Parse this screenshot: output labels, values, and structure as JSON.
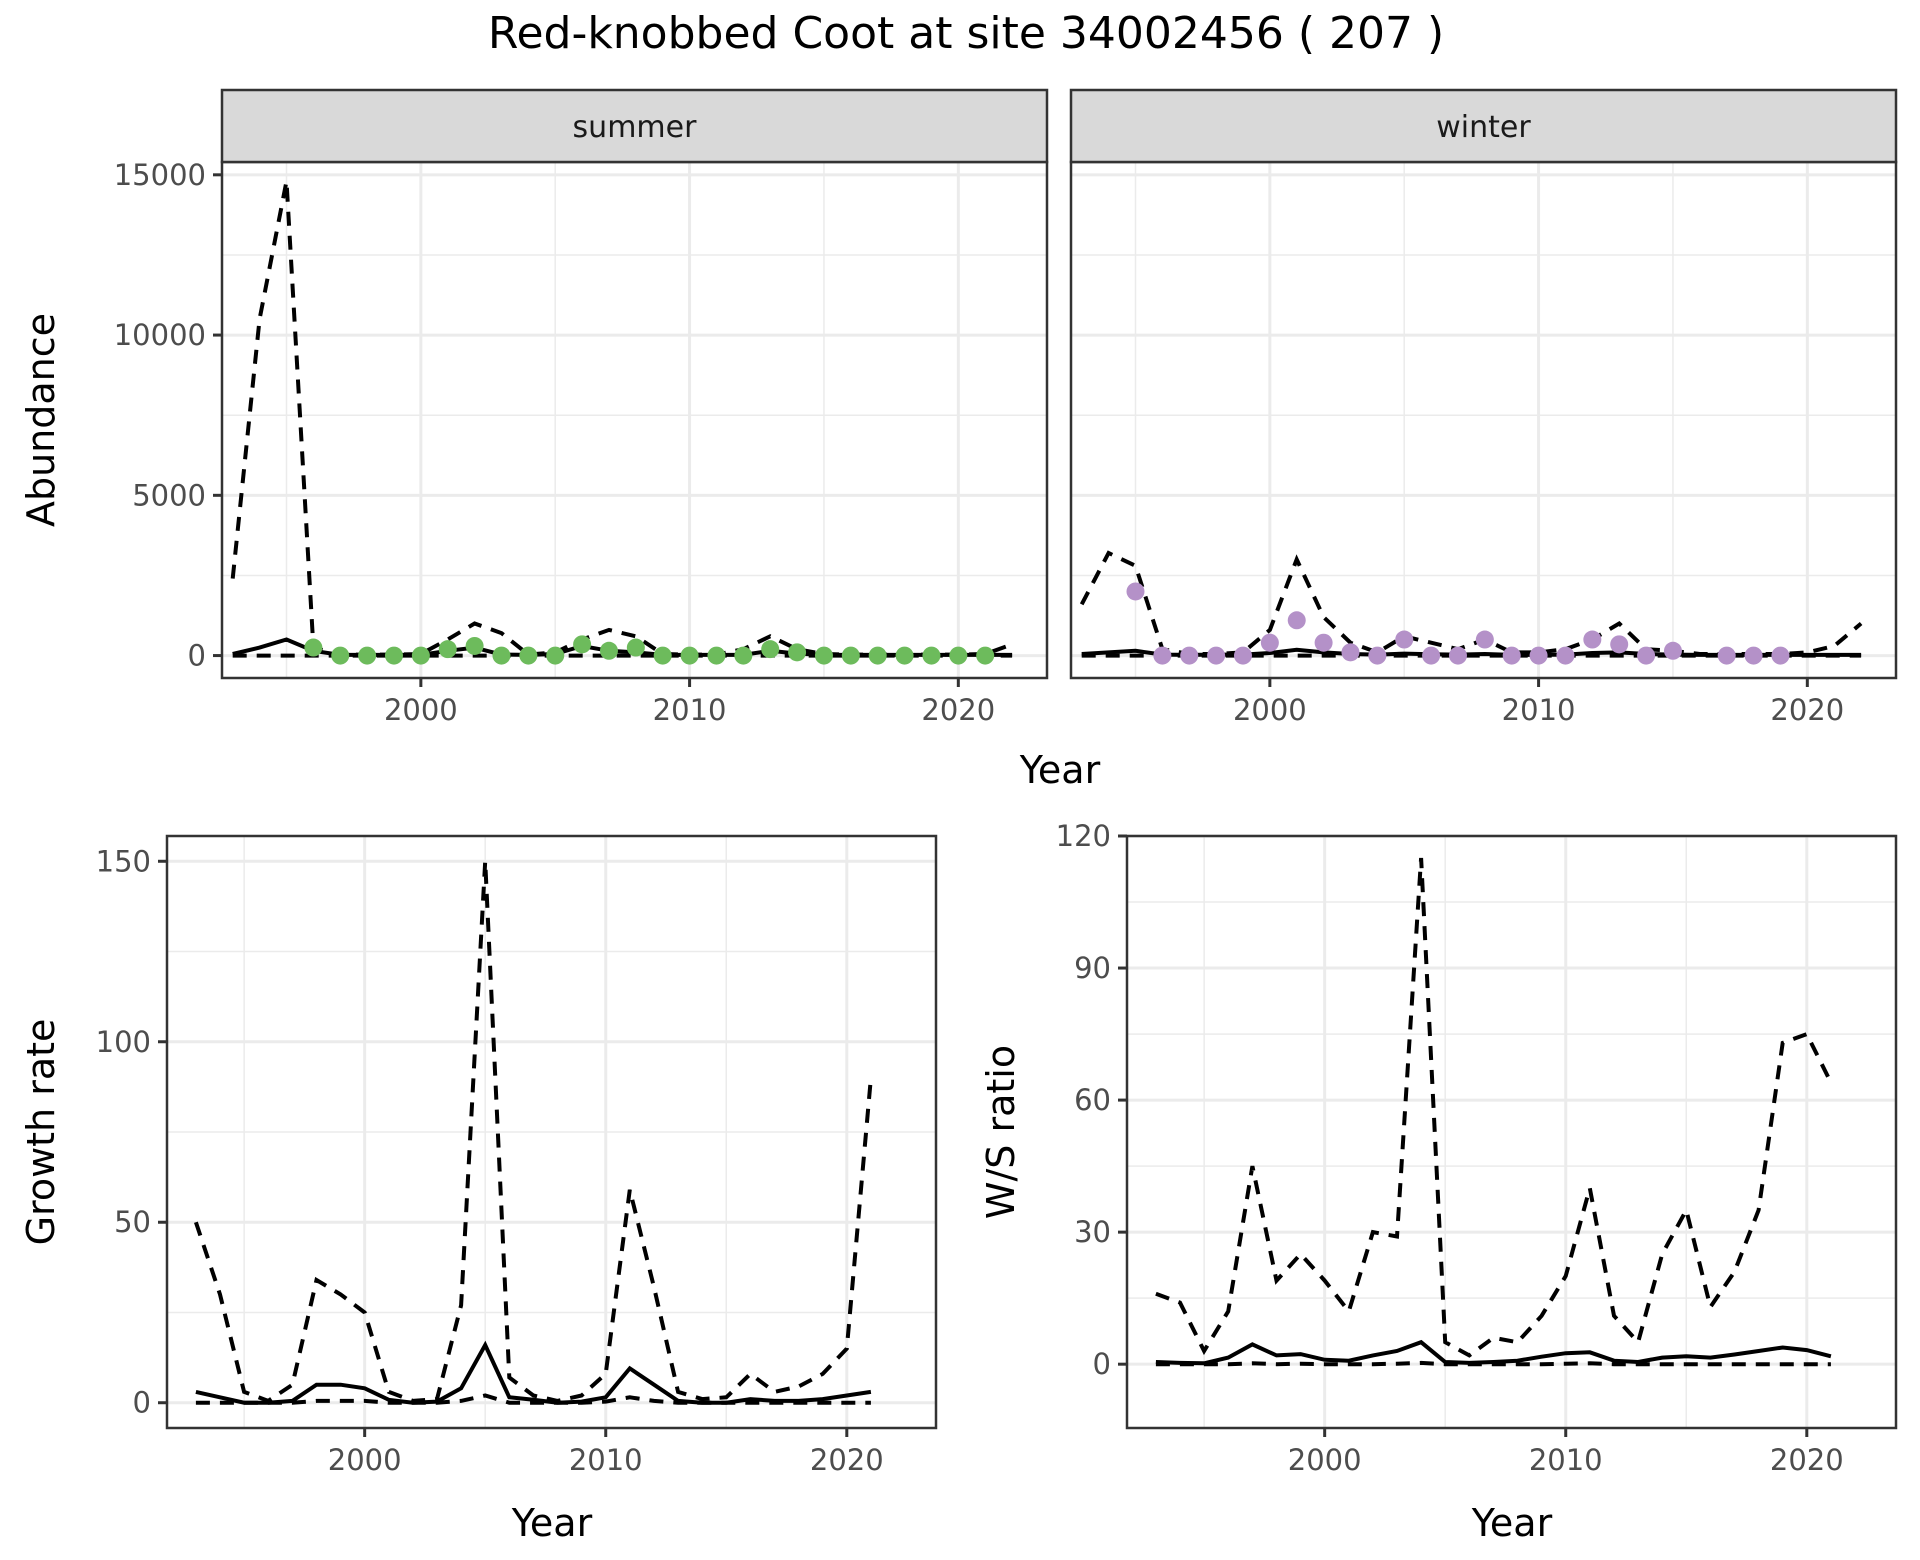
{
  "title": "Red-knobbed Coot at site 34002456 ( 207 )",
  "chart_data": [
    {
      "id": "abundance",
      "type": "line",
      "facets": [
        "summer",
        "winter"
      ],
      "xlabel": "Year",
      "ylabel": "Abundance",
      "xlim": [
        1992.6,
        2023.3
      ],
      "ylim": [
        -700,
        15400
      ],
      "xticks": [
        2000,
        2010,
        2020
      ],
      "xticklabels": [
        "2000",
        "2010",
        "2020"
      ],
      "yticks": [
        0,
        5000,
        10000,
        15000
      ],
      "yticklabels": [
        "0",
        "5000",
        "10000",
        "15000"
      ],
      "grid": true,
      "panels": [
        {
          "facet": "summer",
          "point_color": "#6dbb5c",
          "x": [
            1993,
            1994,
            1995,
            1996,
            1997,
            1998,
            1999,
            2000,
            2001,
            2002,
            2003,
            2004,
            2005,
            2006,
            2007,
            2008,
            2009,
            2010,
            2011,
            2012,
            2013,
            2014,
            2015,
            2016,
            2017,
            2018,
            2019,
            2020,
            2021,
            2022
          ],
          "mean": [
            50,
            250,
            500,
            150,
            20,
            20,
            20,
            20,
            150,
            250,
            30,
            20,
            50,
            300,
            150,
            100,
            20,
            20,
            20,
            20,
            150,
            60,
            20,
            20,
            20,
            20,
            20,
            20,
            20,
            20
          ],
          "upper": [
            2400,
            10500,
            14800,
            250,
            30,
            30,
            30,
            50,
            500,
            1000,
            700,
            30,
            100,
            500,
            800,
            600,
            50,
            30,
            30,
            200,
            600,
            200,
            50,
            30,
            30,
            30,
            30,
            30,
            50,
            350
          ],
          "lower": [
            0,
            0,
            0,
            0,
            0,
            0,
            0,
            0,
            0,
            0,
            0,
            0,
            0,
            0,
            0,
            0,
            0,
            0,
            0,
            0,
            0,
            0,
            0,
            0,
            0,
            0,
            0,
            0,
            0,
            0
          ],
          "points": [
            [
              1996,
              250
            ],
            [
              1997,
              0
            ],
            [
              1998,
              0
            ],
            [
              1999,
              0
            ],
            [
              2000,
              0
            ],
            [
              2001,
              200
            ],
            [
              2002,
              300
            ],
            [
              2003,
              0
            ],
            [
              2004,
              0
            ],
            [
              2005,
              0
            ],
            [
              2006,
              350
            ],
            [
              2007,
              150
            ],
            [
              2008,
              250
            ],
            [
              2009,
              0
            ],
            [
              2010,
              0
            ],
            [
              2011,
              0
            ],
            [
              2012,
              0
            ],
            [
              2013,
              200
            ],
            [
              2014,
              100
            ],
            [
              2015,
              0
            ],
            [
              2016,
              0
            ],
            [
              2017,
              0
            ],
            [
              2018,
              0
            ],
            [
              2019,
              0
            ],
            [
              2020,
              0
            ],
            [
              2021,
              0
            ]
          ]
        },
        {
          "facet": "winter",
          "point_color": "#b491c8",
          "x": [
            1993,
            1994,
            1995,
            1996,
            1997,
            1998,
            1999,
            2000,
            2001,
            2002,
            2003,
            2004,
            2005,
            2006,
            2007,
            2008,
            2009,
            2010,
            2011,
            2012,
            2013,
            2014,
            2015,
            2016,
            2017,
            2018,
            2019,
            2020,
            2021,
            2022
          ],
          "mean": [
            50,
            100,
            150,
            30,
            20,
            30,
            30,
            80,
            180,
            100,
            50,
            30,
            60,
            40,
            30,
            50,
            20,
            20,
            30,
            80,
            100,
            50,
            30,
            20,
            20,
            20,
            20,
            20,
            20,
            20
          ],
          "upper": [
            1600,
            3200,
            2800,
            200,
            50,
            50,
            100,
            800,
            3000,
            1200,
            400,
            100,
            600,
            400,
            200,
            500,
            100,
            100,
            200,
            500,
            1000,
            200,
            150,
            50,
            50,
            50,
            50,
            100,
            300,
            1000
          ],
          "lower": [
            0,
            0,
            0,
            0,
            0,
            0,
            0,
            0,
            0,
            0,
            0,
            0,
            0,
            0,
            0,
            0,
            0,
            0,
            0,
            0,
            0,
            0,
            0,
            0,
            0,
            0,
            0,
            0,
            0,
            0
          ],
          "points": [
            [
              1995,
              2000
            ],
            [
              1996,
              0
            ],
            [
              1997,
              0
            ],
            [
              1998,
              0
            ],
            [
              1999,
              0
            ],
            [
              2000,
              400
            ],
            [
              2001,
              1100
            ],
            [
              2002,
              400
            ],
            [
              2003,
              100
            ],
            [
              2004,
              0
            ],
            [
              2005,
              500
            ],
            [
              2006,
              0
            ],
            [
              2007,
              0
            ],
            [
              2008,
              500
            ],
            [
              2009,
              0
            ],
            [
              2010,
              0
            ],
            [
              2011,
              0
            ],
            [
              2012,
              500
            ],
            [
              2013,
              350
            ],
            [
              2014,
              0
            ],
            [
              2015,
              150
            ],
            [
              2017,
              0
            ],
            [
              2018,
              0
            ],
            [
              2019,
              0
            ]
          ]
        }
      ],
      "legend": "none"
    },
    {
      "id": "growth",
      "type": "line",
      "xlabel": "Year",
      "ylabel": "Growth rate",
      "xlim": [
        1991.8,
        2023.7
      ],
      "ylim": [
        -7,
        157
      ],
      "xticks": [
        2000,
        2010,
        2020
      ],
      "xticklabels": [
        "2000",
        "2010",
        "2020"
      ],
      "yticks": [
        0,
        50,
        100,
        150
      ],
      "yticklabels": [
        "0",
        "50",
        "100",
        "150"
      ],
      "grid": true,
      "x": [
        1993,
        1994,
        1995,
        1996,
        1997,
        1998,
        1999,
        2000,
        2001,
        2002,
        2003,
        2004,
        2005,
        2006,
        2007,
        2008,
        2009,
        2010,
        2011,
        2012,
        2013,
        2014,
        2015,
        2016,
        2017,
        2018,
        2019,
        2020,
        2021
      ],
      "mean": [
        3,
        1.5,
        0,
        0,
        0.5,
        5,
        5,
        4,
        0.8,
        0,
        0.3,
        4,
        16,
        1.5,
        0.8,
        0,
        0.3,
        1.5,
        9.5,
        5,
        0.5,
        0,
        0,
        1,
        0.5,
        0.5,
        1,
        2,
        3
      ],
      "upper": [
        50,
        30,
        3,
        0.5,
        5,
        34,
        30,
        25,
        3,
        0.5,
        1,
        27,
        150,
        7,
        2,
        0.5,
        2,
        8,
        59,
        32,
        3,
        1,
        1.5,
        8,
        3,
        4.5,
        8,
        15,
        90
      ],
      "lower": [
        0,
        0,
        0,
        0,
        0,
        0.5,
        0.5,
        0.5,
        0,
        0,
        0,
        0.5,
        2,
        0,
        0,
        0,
        0,
        0.3,
        1.5,
        0.5,
        0,
        0,
        0,
        0,
        0,
        0,
        0,
        0,
        0
      ],
      "legend": "none"
    },
    {
      "id": "ws_ratio",
      "type": "line",
      "xlabel": "Year",
      "ylabel": "W/S ratio",
      "xlim": [
        1991.8,
        2023.7
      ],
      "ylim": [
        -14.5,
        120
      ],
      "xticks": [
        2000,
        2010,
        2020
      ],
      "xticklabels": [
        "2000",
        "2010",
        "2020"
      ],
      "yticks": [
        0,
        30,
        60,
        90,
        120
      ],
      "yticklabels": [
        "0",
        "30",
        "60",
        "90",
        "120"
      ],
      "grid": true,
      "x": [
        1993,
        1994,
        1995,
        1996,
        1997,
        1998,
        1999,
        2000,
        2001,
        2002,
        2003,
        2004,
        2005,
        2006,
        2007,
        2008,
        2009,
        2010,
        2011,
        2012,
        2013,
        2014,
        2015,
        2016,
        2017,
        2018,
        2019,
        2020,
        2021
      ],
      "mean": [
        0.5,
        0.3,
        0.2,
        1.5,
        4.5,
        2,
        2.3,
        1,
        0.8,
        2,
        3,
        5,
        0.5,
        0.3,
        0.5,
        0.8,
        1.7,
        2.5,
        2.7,
        0.8,
        0.5,
        1.5,
        1.8,
        1.5,
        2.2,
        3,
        3.8,
        3.2,
        1.8
      ],
      "upper": [
        16,
        14,
        3,
        12,
        45,
        19,
        25,
        19,
        12,
        30,
        29,
        115,
        5,
        2,
        6,
        5,
        11,
        20,
        40,
        11,
        5,
        25,
        35,
        13,
        21,
        35,
        73,
        75,
        64
      ],
      "lower": [
        0,
        0,
        0,
        0,
        0.2,
        0,
        0.1,
        0,
        0,
        0,
        0.1,
        0.3,
        0,
        0,
        0,
        0,
        0,
        0.1,
        0.2,
        0,
        0,
        0,
        0,
        0,
        0,
        0,
        0,
        0,
        0
      ],
      "legend": "none"
    }
  ]
}
